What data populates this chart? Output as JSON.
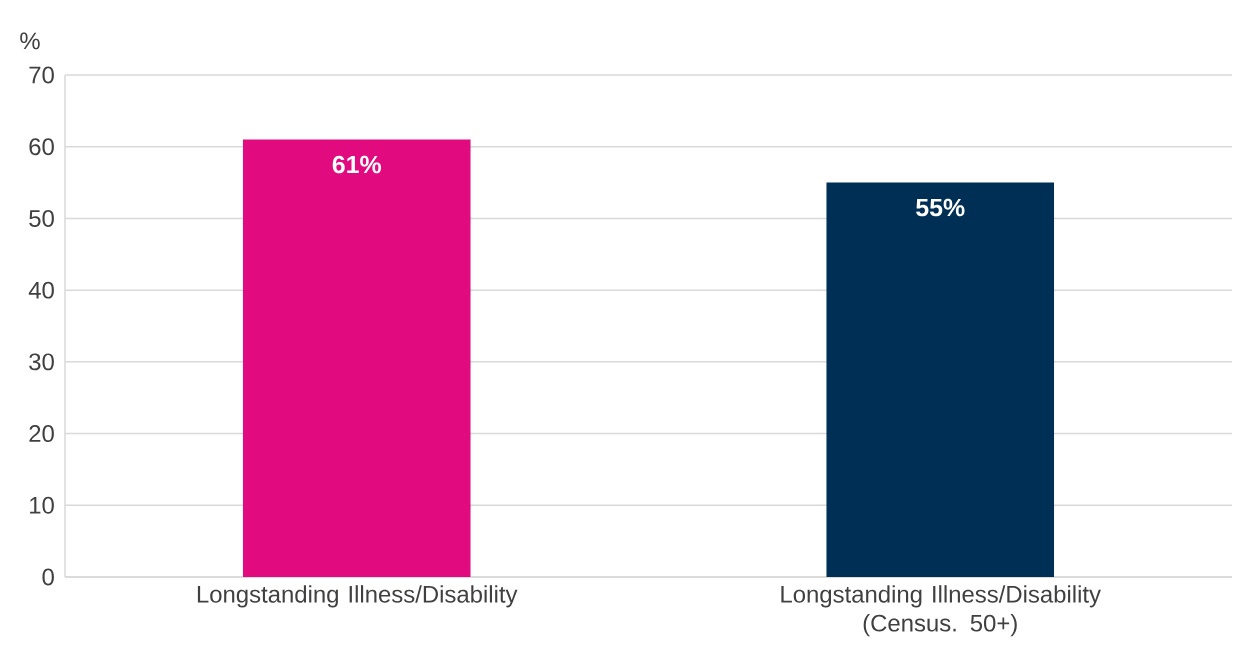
{
  "chart_data": {
    "type": "bar",
    "ylabel": "%",
    "categories": [
      "Longstanding Illness/Disability",
      "Longstanding Illness/Disability (Census. 50+)"
    ],
    "values": [
      61,
      55
    ],
    "colors": [
      "#e20a7f",
      "#002f56"
    ],
    "value_labels": [
      "61%",
      "55%"
    ],
    "ylim": [
      0,
      70
    ],
    "yticks": [
      0,
      10,
      20,
      30,
      40,
      50,
      60,
      70
    ],
    "grid": "y"
  }
}
